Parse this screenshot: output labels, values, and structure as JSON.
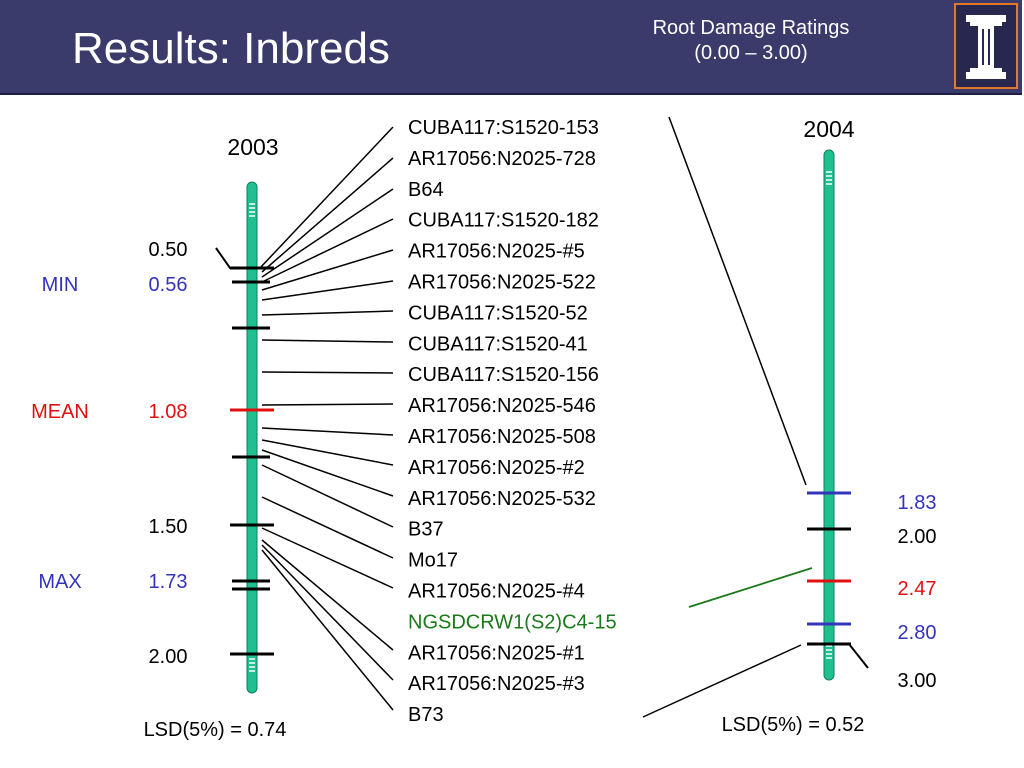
{
  "header": {
    "title": "Results: Inbreds",
    "subtitle_line1": "Root Damage Ratings",
    "subtitle_line2": "(0.00 – 3.00)"
  },
  "colors": {
    "header_bg": "#3b3b6b",
    "bar": "#1fbf8f",
    "min_max": "#3333bb",
    "mean": "#e01010",
    "highlight": "#1a7a1a",
    "logo_border": "#e07a2a"
  },
  "left_year": "2003",
  "right_year": "2004",
  "left_lsd": "LSD(5%) = 0.74",
  "right_lsd": "LSD(5%) = 0.52",
  "left_axis": {
    "ticks": [
      {
        "value": "0.50"
      },
      {
        "value": "1.50"
      },
      {
        "value": "2.00"
      }
    ],
    "stats": [
      {
        "label": "MIN",
        "value": "0.56",
        "kind": "minmax"
      },
      {
        "label": "MEAN",
        "value": "1.08",
        "kind": "mean"
      },
      {
        "label": "MAX",
        "value": "1.73",
        "kind": "minmax"
      }
    ]
  },
  "right_axis": {
    "labels": [
      {
        "value": "1.83",
        "kind": "minmax"
      },
      {
        "value": "2.00",
        "kind": "plain"
      },
      {
        "value": "2.47",
        "kind": "mean"
      },
      {
        "value": "2.80",
        "kind": "minmax"
      },
      {
        "value": "3.00",
        "kind": "plain"
      }
    ]
  },
  "entries": [
    {
      "name": "CUBA117:S1520-153"
    },
    {
      "name": "AR17056:N2025-728"
    },
    {
      "name": "B64"
    },
    {
      "name": "CUBA117:S1520-182"
    },
    {
      "name": "AR17056:N2025-#5"
    },
    {
      "name": "AR17056:N2025-522"
    },
    {
      "name": "CUBA117:S1520-52"
    },
    {
      "name": "CUBA117:S1520-41"
    },
    {
      "name": "CUBA117:S1520-156"
    },
    {
      "name": "AR17056:N2025-546"
    },
    {
      "name": "AR17056:N2025-508"
    },
    {
      "name": "AR17056:N2025-#2"
    },
    {
      "name": "AR17056:N2025-532"
    },
    {
      "name": "B37"
    },
    {
      "name": "Mo17"
    },
    {
      "name": "AR17056:N2025-#4"
    },
    {
      "name": "NGSDCRW1(S2)C4-15",
      "highlight": true
    },
    {
      "name": "AR17056:N2025-#1"
    },
    {
      "name": "AR17056:N2025-#3"
    },
    {
      "name": "B73"
    }
  ]
}
